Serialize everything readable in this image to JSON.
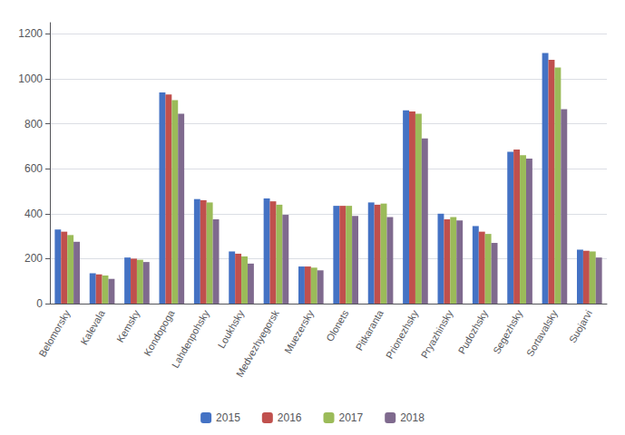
{
  "chart_data": {
    "type": "bar",
    "categories": [
      "Belomorsky",
      "Kalevala",
      "Kemsky",
      "Kondopoga",
      "Lahdenpohsky",
      "Loukhsky",
      "Medvezhyegorsk",
      "Muezersky",
      "Olonets",
      "Pitkaranta",
      "Prionezhsky",
      "Pryazhinsky",
      "Pudozhsky",
      "Segezhsky",
      "Sortavalsky",
      "Suojarvi"
    ],
    "series": [
      {
        "name": "2015",
        "color": "#4472c4",
        "values": [
          330,
          135,
          205,
          940,
          465,
          232,
          468,
          165,
          435,
          450,
          860,
          400,
          345,
          675,
          1115,
          240
        ]
      },
      {
        "name": "2016",
        "color": "#c0504d",
        "values": [
          320,
          130,
          200,
          930,
          460,
          222,
          455,
          165,
          435,
          440,
          855,
          375,
          320,
          685,
          1085,
          235
        ]
      },
      {
        "name": "2017",
        "color": "#9bbb59",
        "values": [
          305,
          125,
          195,
          905,
          450,
          210,
          440,
          160,
          435,
          445,
          845,
          385,
          310,
          660,
          1050,
          232
        ]
      },
      {
        "name": "2018",
        "color": "#7f6a8e",
        "values": [
          275,
          110,
          185,
          845,
          375,
          178,
          395,
          148,
          390,
          385,
          735,
          370,
          270,
          645,
          865,
          205
        ]
      }
    ],
    "ylim": [
      0,
      1250
    ],
    "yticks": [
      0,
      200,
      400,
      600,
      800,
      1000,
      1200
    ],
    "grid": true,
    "legend": "bottom"
  }
}
